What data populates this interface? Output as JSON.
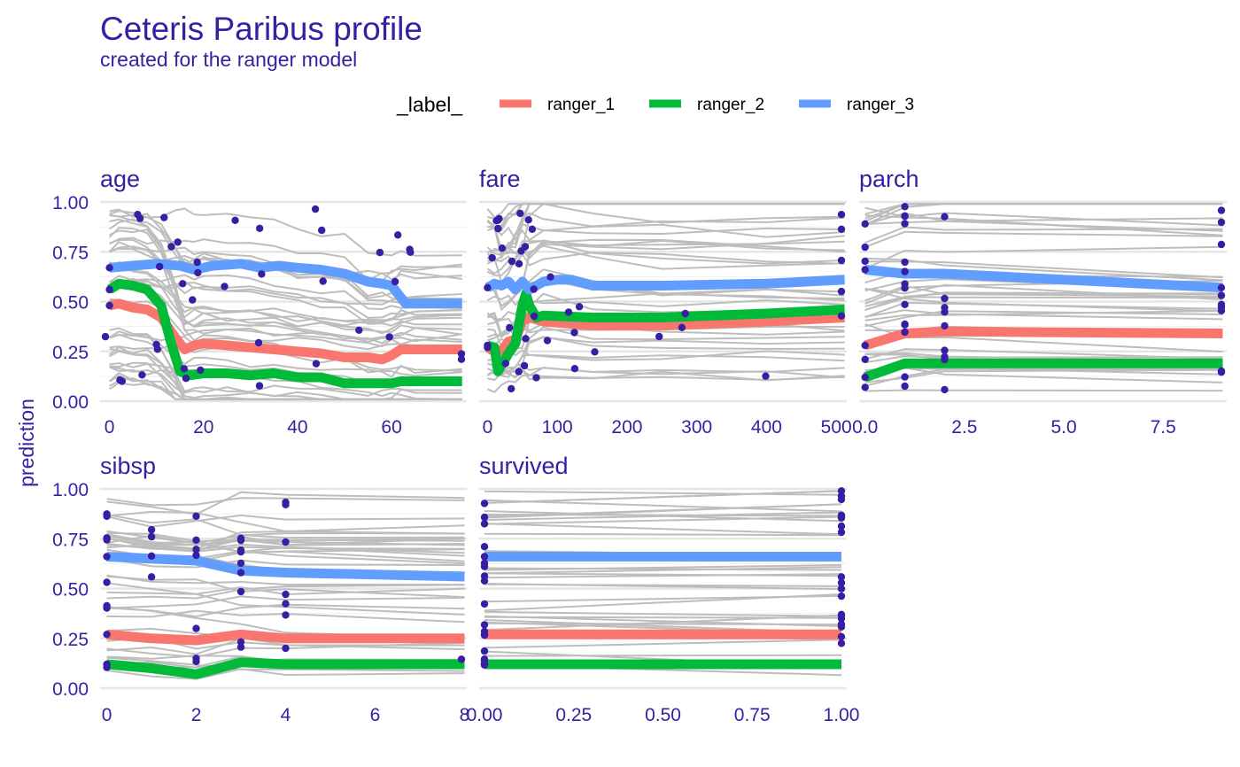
{
  "title": "Ceteris Paribus profile",
  "subtitle": "created for the ranger model",
  "legend_title": "_label_",
  "ylabel": "prediction",
  "colors": {
    "text": "#371ea3",
    "grid": "#e6e6e6",
    "profiles": "#bdbdbd",
    "points": "#371ea3",
    "ranger_1": "#f8766d",
    "ranger_2": "#00ba38",
    "ranger_3": "#619cff"
  },
  "chart_data": {
    "type": "line",
    "legend": {
      "title": "_label_",
      "position": "top",
      "items": [
        "ranger_1",
        "ranger_2",
        "ranger_3"
      ]
    },
    "ylim": [
      0,
      1
    ],
    "yticks": [
      "0.00",
      "0.25",
      "0.50",
      "0.75",
      "1.00"
    ],
    "panels": [
      {
        "name": "age",
        "xlim": [
          -2,
          76
        ],
        "xticks": [
          0,
          20,
          40,
          60
        ],
        "xtick_labels": [
          "0",
          "20",
          "40",
          "60"
        ],
        "series": [
          {
            "name": "ranger_1",
            "x": [
              0,
              2,
              5,
              8,
              11,
              14,
              16,
              18,
              20,
              25,
              30,
              35,
              40,
              45,
              50,
              55,
              58,
              60,
              62,
              65,
              75
            ],
            "y": [
              0.48,
              0.49,
              0.47,
              0.46,
              0.42,
              0.32,
              0.26,
              0.28,
              0.29,
              0.28,
              0.27,
              0.26,
              0.25,
              0.24,
              0.22,
              0.22,
              0.21,
              0.23,
              0.26,
              0.26,
              0.26
            ]
          },
          {
            "name": "ranger_2",
            "x": [
              0,
              2,
              5,
              8,
              11,
              13,
              15,
              17,
              20,
              25,
              30,
              35,
              40,
              45,
              50,
              55,
              60,
              62,
              75
            ],
            "y": [
              0.56,
              0.59,
              0.58,
              0.56,
              0.48,
              0.3,
              0.15,
              0.13,
              0.14,
              0.14,
              0.13,
              0.14,
              0.12,
              0.12,
              0.09,
              0.09,
              0.09,
              0.1,
              0.1
            ]
          },
          {
            "name": "ranger_3",
            "x": [
              0,
              5,
              10,
              15,
              18,
              22,
              28,
              32,
              36,
              40,
              45,
              50,
              55,
              58,
              60,
              63,
              75
            ],
            "y": [
              0.67,
              0.68,
              0.69,
              0.68,
              0.66,
              0.68,
              0.69,
              0.67,
              0.68,
              0.67,
              0.66,
              0.64,
              0.6,
              0.59,
              0.58,
              0.49,
              0.49
            ]
          }
        ]
      },
      {
        "name": "fare",
        "xlim": [
          -12,
          515
        ],
        "xticks": [
          0,
          100,
          200,
          300,
          400,
          500
        ],
        "xtick_labels": [
          "0",
          "100",
          "200",
          "300",
          "400",
          "500"
        ],
        "series": [
          {
            "name": "ranger_1",
            "x": [
              0,
              10,
              20,
              30,
              40,
              50,
              60,
              80,
              150,
              250,
              400,
              512
            ],
            "y": [
              0.27,
              0.25,
              0.25,
              0.3,
              0.31,
              0.4,
              0.42,
              0.4,
              0.38,
              0.38,
              0.4,
              0.42
            ]
          },
          {
            "name": "ranger_2",
            "x": [
              0,
              10,
              15,
              20,
              30,
              40,
              50,
              55,
              60,
              70,
              80,
              150,
              250,
              400,
              512
            ],
            "y": [
              0.28,
              0.27,
              0.15,
              0.18,
              0.24,
              0.29,
              0.48,
              0.54,
              0.48,
              0.42,
              0.43,
              0.42,
              0.42,
              0.44,
              0.46
            ]
          },
          {
            "name": "ranger_3",
            "x": [
              0,
              10,
              20,
              30,
              40,
              50,
              60,
              80,
              100,
              120,
              150,
              250,
              400,
              512
            ],
            "y": [
              0.57,
              0.59,
              0.58,
              0.6,
              0.56,
              0.6,
              0.56,
              0.6,
              0.61,
              0.61,
              0.58,
              0.58,
              0.59,
              0.61
            ]
          }
        ]
      },
      {
        "name": "parch",
        "xlim": [
          -0.15,
          9.1
        ],
        "xticks": [
          0,
          2.5,
          5,
          7.5
        ],
        "xtick_labels": [
          "0.0",
          "2.5",
          "5.0",
          "7.5"
        ],
        "series": [
          {
            "name": "ranger_1",
            "x": [
              0,
              1,
              2,
              9
            ],
            "y": [
              0.28,
              0.34,
              0.35,
              0.34
            ]
          },
          {
            "name": "ranger_2",
            "x": [
              0,
              1,
              2,
              9
            ],
            "y": [
              0.12,
              0.19,
              0.19,
              0.19
            ]
          },
          {
            "name": "ranger_3",
            "x": [
              0,
              1,
              2,
              9
            ],
            "y": [
              0.66,
              0.64,
              0.64,
              0.57
            ]
          }
        ]
      },
      {
        "name": "sibsp",
        "xlim": [
          -0.15,
          8.05
        ],
        "xticks": [
          0,
          2,
          4,
          6,
          8
        ],
        "xtick_labels": [
          "0",
          "2",
          "4",
          "6",
          "8"
        ],
        "series": [
          {
            "name": "ranger_1",
            "x": [
              0,
              1,
              2,
              3,
              4,
              8
            ],
            "y": [
              0.27,
              0.25,
              0.24,
              0.27,
              0.25,
              0.25
            ]
          },
          {
            "name": "ranger_2",
            "x": [
              0,
              1,
              2,
              3,
              4,
              8
            ],
            "y": [
              0.12,
              0.1,
              0.07,
              0.13,
              0.12,
              0.12
            ]
          },
          {
            "name": "ranger_3",
            "x": [
              0,
              1,
              2,
              3,
              4,
              8
            ],
            "y": [
              0.66,
              0.65,
              0.64,
              0.59,
              0.58,
              0.56
            ]
          }
        ]
      },
      {
        "name": "survived",
        "xlim": [
          -0.015,
          1.015
        ],
        "xticks": [
          0,
          0.25,
          0.5,
          0.75,
          1
        ],
        "xtick_labels": [
          "0.00",
          "0.25",
          "0.50",
          "0.75",
          "1.00"
        ],
        "series": [
          {
            "name": "ranger_1",
            "x": [
              0,
              1
            ],
            "y": [
              0.27,
              0.27
            ]
          },
          {
            "name": "ranger_2",
            "x": [
              0,
              1
            ],
            "y": [
              0.12,
              0.12
            ]
          },
          {
            "name": "ranger_3",
            "x": [
              0,
              1
            ],
            "y": [
              0.66,
              0.66
            ]
          }
        ]
      }
    ]
  }
}
